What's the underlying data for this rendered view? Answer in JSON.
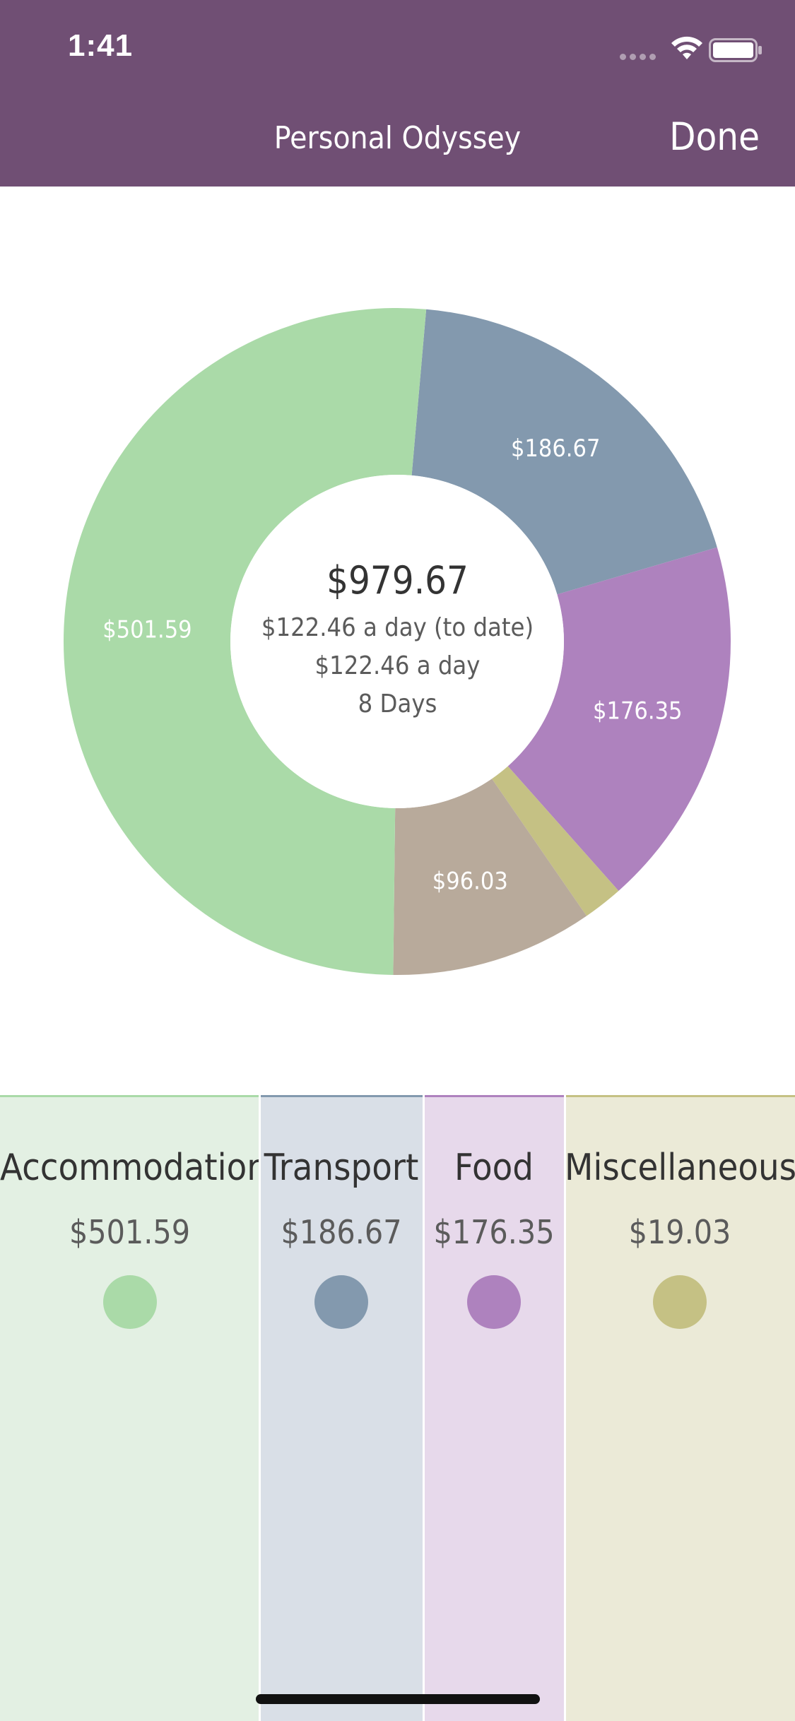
{
  "status_bar": {
    "time": "1:41"
  },
  "nav": {
    "title": "Personal Odyssey",
    "done_label": "Done"
  },
  "summary": {
    "total": "$979.67",
    "per_day_to_date": "$122.46 a day (to date)",
    "per_day": "$122.46 a day",
    "days": "8 Days"
  },
  "chart_data": {
    "type": "pie",
    "variant": "donut",
    "slices": [
      {
        "category": "Transport",
        "value": 186.67,
        "label": "$186.67",
        "color": "#8399ae"
      },
      {
        "category": "Food",
        "value": 176.35,
        "label": "$176.35",
        "color": "#ae82be"
      },
      {
        "category": "Miscellaneous",
        "value": 19.03,
        "label": "",
        "color": "#c5c184"
      },
      {
        "category": "",
        "value": 96.03,
        "label": "$96.03",
        "color": "#b8aa9b"
      },
      {
        "category": "Accommodation",
        "value": 501.59,
        "label": "$501.59",
        "color": "#aadaa8"
      }
    ]
  },
  "legend": [
    {
      "name": "Accommodation",
      "amount": "$501.59",
      "color": "#aadaa8",
      "bg": "#e3f0e3"
    },
    {
      "name": "Transport",
      "amount": "$186.67",
      "color": "#8399ae",
      "bg": "#d9dfe7"
    },
    {
      "name": "Food",
      "amount": "$176.35",
      "color": "#ae82be",
      "bg": "#e7d9eb"
    },
    {
      "name": "Miscellaneous",
      "amount": "$19.03",
      "color": "#c5c184",
      "bg": "#ebead7"
    }
  ]
}
